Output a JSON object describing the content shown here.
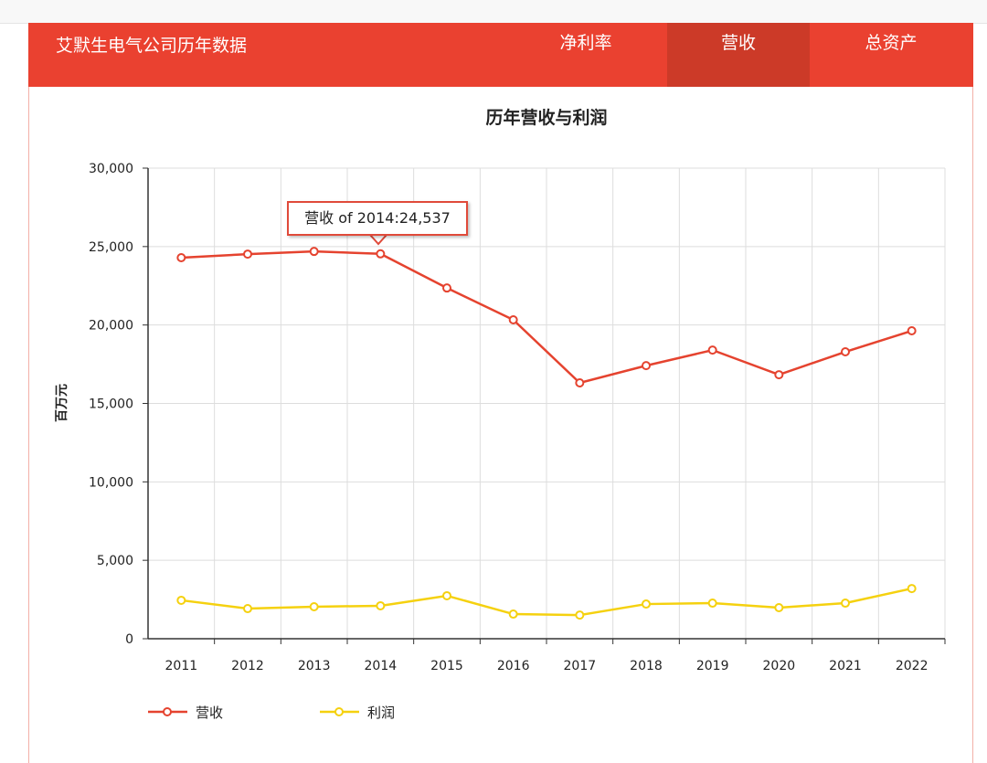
{
  "header": {
    "title": "艾默生电气公司历年数据",
    "tabs": [
      {
        "label": "净利率",
        "active": false
      },
      {
        "label": "营收",
        "active": true
      },
      {
        "label": "总资产",
        "active": false
      }
    ]
  },
  "colors": {
    "header": "#ea4130",
    "active_tab": "#cc3a28",
    "revenue": "#e5432f",
    "profit": "#f5d10f"
  },
  "tooltip": {
    "text": "营收 of 2014:24,537"
  },
  "chart_data": {
    "type": "line",
    "title": "历年营收与利润",
    "xlabel": "",
    "ylabel": "百万元",
    "categories": [
      "2011",
      "2012",
      "2013",
      "2014",
      "2015",
      "2016",
      "2017",
      "2018",
      "2019",
      "2020",
      "2021",
      "2022"
    ],
    "ylim": [
      0,
      30000
    ],
    "yticks": [
      0,
      5000,
      10000,
      15000,
      20000,
      25000,
      30000
    ],
    "ytick_labels": [
      "0",
      "5,000",
      "10,000",
      "15,000",
      "20,000",
      "25,000",
      "30,000"
    ],
    "grid": true,
    "legend": "bottom-left",
    "series": [
      {
        "name": "营收",
        "color": "#e5432f",
        "values": [
          24290,
          24520,
          24690,
          24537,
          22360,
          20330,
          16310,
          17410,
          18400,
          16830,
          18290,
          19630
        ]
      },
      {
        "name": "利润",
        "color": "#f5d10f",
        "values": [
          2450,
          1920,
          2040,
          2100,
          2740,
          1570,
          1510,
          2210,
          2270,
          1980,
          2270,
          3200
        ]
      }
    ]
  }
}
